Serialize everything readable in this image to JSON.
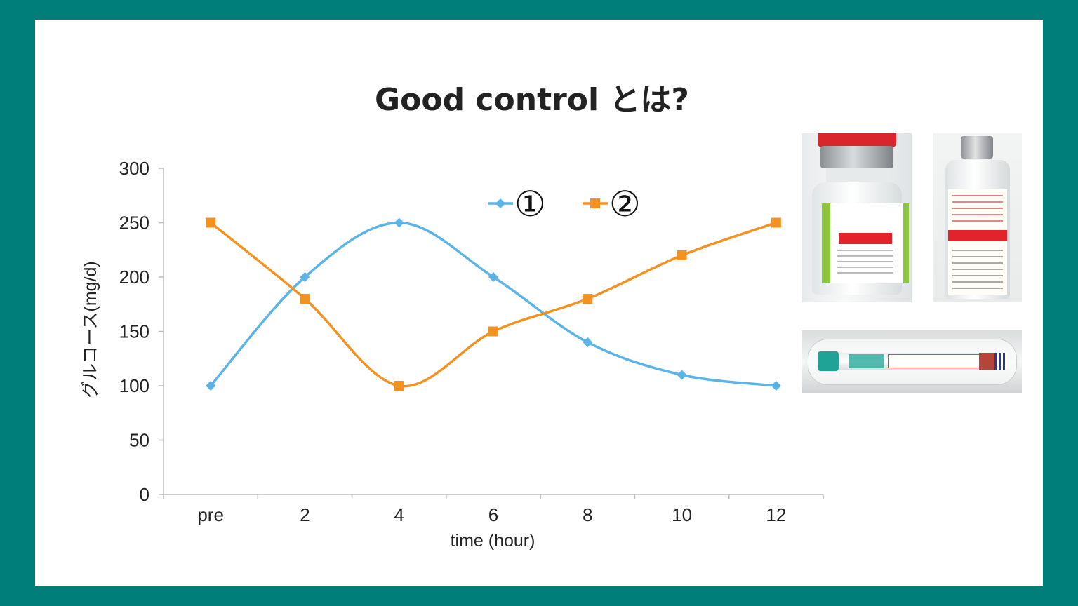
{
  "slide": {
    "title": "Good control とは?"
  },
  "chart_data": {
    "type": "line",
    "title": "",
    "xlabel": "time (hour)",
    "ylabel": "グルコース(mg/d)",
    "categories": [
      "pre",
      "2",
      "4",
      "6",
      "8",
      "10",
      "12"
    ],
    "ylim": [
      0,
      300
    ],
    "yticks": [
      0,
      50,
      100,
      150,
      200,
      250,
      300
    ],
    "grid": false,
    "legend_position": "top-right",
    "series": [
      {
        "name": "①",
        "values": [
          100,
          200,
          250,
          200,
          140,
          110,
          100
        ],
        "color": "#5ab4e8",
        "marker": "diamond"
      },
      {
        "name": "②",
        "values": [
          250,
          180,
          100,
          150,
          180,
          220,
          250
        ],
        "color": "#f39221",
        "marker": "square"
      }
    ]
  },
  "images": [
    {
      "id": "vial-1",
      "icon": "insulin-vial-photo"
    },
    {
      "id": "vial-2",
      "icon": "insulin-vial-photo"
    },
    {
      "id": "cartridge",
      "icon": "insulin-cartridge-photo"
    }
  ]
}
